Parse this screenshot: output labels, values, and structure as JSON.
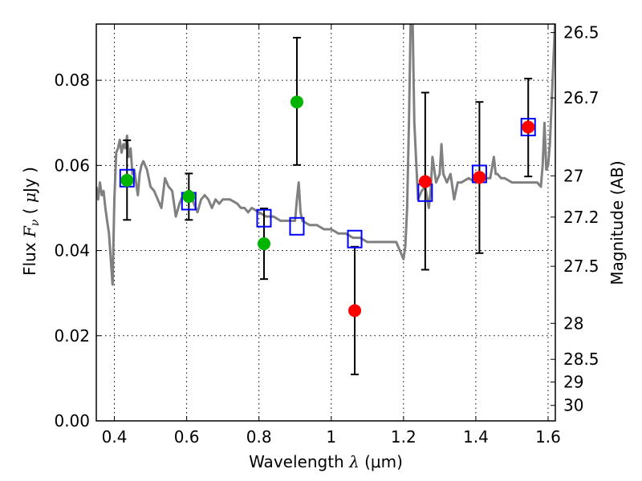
{
  "chart_data": {
    "type": "scatter",
    "title": "",
    "xlabel": "Wavelength  λ (μm)",
    "xlabel_parts": {
      "prefix": "Wavelength  ",
      "symbol": "λ",
      "suffix": " (μm)"
    },
    "ylabel": "Flux  Fν  ( μJy )",
    "ylabel_parts": {
      "prefix": "Flux  ",
      "symbol": "F",
      "subscript": "ν",
      "suffix": "  ( ",
      "unit_symbol": "μ",
      "unit_rest": "Jy )"
    },
    "y2label": "Magnitude (AB)",
    "xlim": [
      0.35,
      1.62
    ],
    "ylim": [
      0.0,
      0.0932
    ],
    "grid": true,
    "legend": "none",
    "xticks": [
      0.4,
      0.6,
      0.8,
      1.0,
      1.2,
      1.4,
      1.6
    ],
    "xtick_labels": [
      "0.4",
      "0.6",
      "0.8",
      "1",
      "1.2",
      "1.4",
      "1.6"
    ],
    "yticks": [
      0.0,
      0.02,
      0.04,
      0.06,
      0.08
    ],
    "ytick_labels": [
      "0.00",
      "0.02",
      "0.04",
      "0.06",
      "0.08"
    ],
    "y2ticks": [
      {
        "label": "26.5",
        "mag": 26.5
      },
      {
        "label": "26.7",
        "mag": 26.7
      },
      {
        "label": "27",
        "mag": 27.0
      },
      {
        "label": "27.2",
        "mag": 27.2
      },
      {
        "label": "27.5",
        "mag": 27.5
      },
      {
        "label": "28",
        "mag": 28.0
      },
      {
        "label": "28.5",
        "mag": 28.5
      },
      {
        "label": "29",
        "mag": 29.0
      },
      {
        "label": "30",
        "mag": 30.0
      }
    ],
    "colors": {
      "model": "#808080",
      "detected": "#00b400",
      "upper": "#ff0000",
      "model_phot": "#0000ff",
      "errorbar": "#000000",
      "grid": "#000000"
    },
    "series": [
      {
        "name": "model-spectrum",
        "type": "line",
        "x": [
          0.35,
          0.355,
          0.36,
          0.365,
          0.37,
          0.375,
          0.38,
          0.385,
          0.39,
          0.395,
          0.4,
          0.405,
          0.41,
          0.415,
          0.42,
          0.425,
          0.43,
          0.435,
          0.44,
          0.445,
          0.45,
          0.455,
          0.46,
          0.465,
          0.47,
          0.475,
          0.48,
          0.49,
          0.5,
          0.51,
          0.52,
          0.53,
          0.54,
          0.55,
          0.56,
          0.57,
          0.58,
          0.59,
          0.6,
          0.61,
          0.62,
          0.63,
          0.64,
          0.65,
          0.66,
          0.67,
          0.68,
          0.69,
          0.7,
          0.72,
          0.74,
          0.75,
          0.755,
          0.76,
          0.77,
          0.78,
          0.8,
          0.82,
          0.84,
          0.86,
          0.88,
          0.9,
          0.905,
          0.91,
          0.915,
          0.92,
          0.94,
          0.96,
          0.98,
          1.0,
          1.02,
          1.04,
          1.06,
          1.08,
          1.1,
          1.12,
          1.14,
          1.16,
          1.18,
          1.19,
          1.2,
          1.205,
          1.21,
          1.215,
          1.22,
          1.225,
          1.23,
          1.24,
          1.25,
          1.26,
          1.27,
          1.275,
          1.28,
          1.29,
          1.3,
          1.305,
          1.31,
          1.32,
          1.33,
          1.34,
          1.35,
          1.36,
          1.38,
          1.4,
          1.42,
          1.44,
          1.45,
          1.455,
          1.46,
          1.47,
          1.48,
          1.5,
          1.52,
          1.54,
          1.56,
          1.57,
          1.58,
          1.585,
          1.59,
          1.595,
          1.6,
          1.605,
          1.61,
          1.615,
          1.62
        ],
        "y": [
          0.055,
          0.052,
          0.056,
          0.053,
          0.054,
          0.05,
          0.047,
          0.044,
          0.038,
          0.032,
          0.052,
          0.063,
          0.064,
          0.066,
          0.063,
          0.065,
          0.064,
          0.067,
          0.062,
          0.064,
          0.058,
          0.059,
          0.056,
          0.053,
          0.058,
          0.06,
          0.061,
          0.059,
          0.055,
          0.054,
          0.052,
          0.05,
          0.057,
          0.055,
          0.054,
          0.048,
          0.051,
          0.053,
          0.052,
          0.054,
          0.051,
          0.049,
          0.052,
          0.053,
          0.052,
          0.05,
          0.052,
          0.051,
          0.052,
          0.052,
          0.051,
          0.05,
          0.05,
          0.05,
          0.049,
          0.05,
          0.049,
          0.048,
          0.048,
          0.047,
          0.047,
          0.047,
          0.052,
          0.056,
          0.049,
          0.047,
          0.046,
          0.046,
          0.045,
          0.045,
          0.044,
          0.044,
          0.043,
          0.043,
          0.042,
          0.042,
          0.042,
          0.042,
          0.042,
          0.04,
          0.038,
          0.041,
          0.05,
          0.07,
          0.095,
          0.095,
          0.07,
          0.052,
          0.054,
          0.055,
          0.05,
          0.054,
          0.062,
          0.056,
          0.058,
          0.065,
          0.058,
          0.056,
          0.058,
          0.052,
          0.056,
          0.056,
          0.057,
          0.056,
          0.057,
          0.057,
          0.062,
          0.058,
          0.058,
          0.057,
          0.057,
          0.056,
          0.056,
          0.056,
          0.056,
          0.056,
          0.055,
          0.06,
          0.07,
          0.059,
          0.06,
          0.065,
          0.075,
          0.085,
          0.095
        ]
      },
      {
        "name": "detections",
        "type": "scatter",
        "marker": "circle",
        "color": "#00b400",
        "points": [
          {
            "x": 0.435,
            "y": 0.0565,
            "err_low": 0.0472,
            "err_high": 0.0659
          },
          {
            "x": 0.606,
            "y": 0.0527,
            "err_low": 0.0472,
            "err_high": 0.0581
          },
          {
            "x": 0.814,
            "y": 0.0416,
            "err_low": 0.0333,
            "err_high": 0.0499
          },
          {
            "x": 0.905,
            "y": 0.0749,
            "err_low": 0.0601,
            "err_high": 0.09
          }
        ]
      },
      {
        "name": "low-significance",
        "type": "scatter",
        "marker": "circle",
        "color": "#ff0000",
        "points": [
          {
            "x": 1.065,
            "y": 0.0259,
            "err_low": 0.0109,
            "err_high": 0.0409
          },
          {
            "x": 1.26,
            "y": 0.0562,
            "err_low": 0.0355,
            "err_high": 0.0771
          },
          {
            "x": 1.41,
            "y": 0.0572,
            "err_low": 0.0394,
            "err_high": 0.0749
          },
          {
            "x": 1.545,
            "y": 0.069,
            "err_low": 0.0574,
            "err_high": 0.0804
          }
        ]
      },
      {
        "name": "model-photometry",
        "type": "scatter",
        "marker": "square-open",
        "color": "#0000ff",
        "points": [
          {
            "x": 0.435,
            "y": 0.057
          },
          {
            "x": 0.606,
            "y": 0.0516
          },
          {
            "x": 0.814,
            "y": 0.0476
          },
          {
            "x": 0.905,
            "y": 0.0457
          },
          {
            "x": 1.065,
            "y": 0.0427
          },
          {
            "x": 1.26,
            "y": 0.0536
          },
          {
            "x": 1.41,
            "y": 0.058
          },
          {
            "x": 1.545,
            "y": 0.069
          }
        ]
      }
    ]
  }
}
